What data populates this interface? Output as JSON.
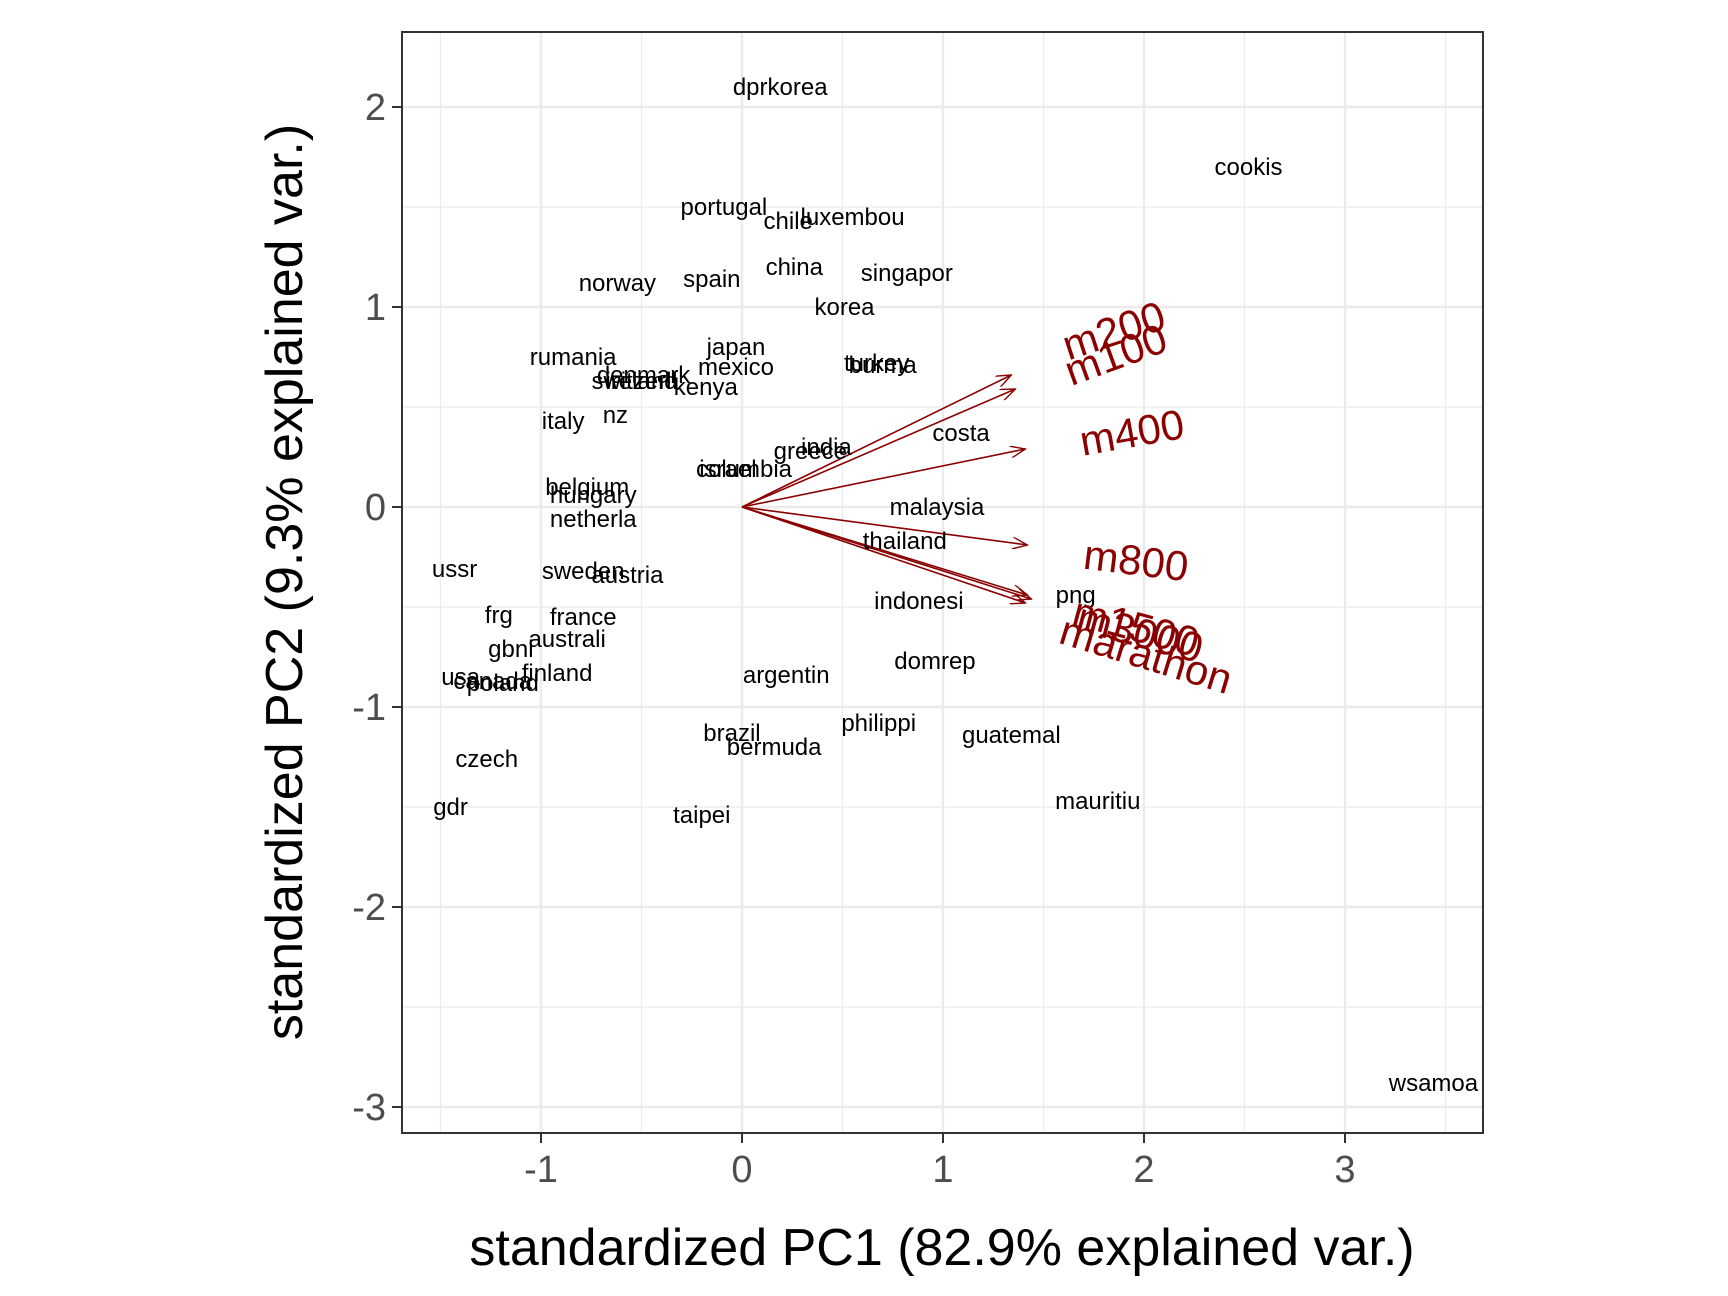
{
  "chart_data": {
    "type": "scatter",
    "xlabel": "standardized PC1 (82.9% explained var.)",
    "ylabel": "standardized PC2 (9.3% explained var.)",
    "xlim": [
      -1.69,
      3.69
    ],
    "ylim": [
      -3.12,
      2.38
    ],
    "xticks": [
      -1,
      0,
      1,
      2,
      3
    ],
    "yticks": [
      -3,
      -2,
      -1,
      0,
      1,
      2
    ],
    "grid": true,
    "colors": {
      "arrow": "#8b0000",
      "grid": "#ebebeb",
      "panel_border": "#333333",
      "points": "#000000"
    },
    "points": [
      {
        "label": "dprkorea",
        "x": 0.19,
        "y": 2.1
      },
      {
        "label": "cookis",
        "x": 2.52,
        "y": 1.7
      },
      {
        "label": "portugal",
        "x": -0.09,
        "y": 1.5
      },
      {
        "label": "luxembou",
        "x": 0.55,
        "y": 1.45
      },
      {
        "label": "chile",
        "x": 0.23,
        "y": 1.43
      },
      {
        "label": "china",
        "x": 0.26,
        "y": 1.2
      },
      {
        "label": "singapor",
        "x": 0.82,
        "y": 1.17
      },
      {
        "label": "spain",
        "x": -0.15,
        "y": 1.14
      },
      {
        "label": "norway",
        "x": -0.62,
        "y": 1.12
      },
      {
        "label": "korea",
        "x": 0.51,
        "y": 1.0
      },
      {
        "label": "japan",
        "x": -0.03,
        "y": 0.8
      },
      {
        "label": "rumania",
        "x": -0.84,
        "y": 0.75
      },
      {
        "label": "turkey",
        "x": 0.67,
        "y": 0.72
      },
      {
        "label": "burma",
        "x": 0.7,
        "y": 0.71
      },
      {
        "label": "mexico",
        "x": -0.03,
        "y": 0.7
      },
      {
        "label": "denmark",
        "x": -0.49,
        "y": 0.66
      },
      {
        "label": "switzerl",
        "x": -0.55,
        "y": 0.63
      },
      {
        "label": "ireland",
        "x": -0.5,
        "y": 0.63
      },
      {
        "label": "kenya",
        "x": -0.18,
        "y": 0.6
      },
      {
        "label": "nz",
        "x": -0.63,
        "y": 0.46
      },
      {
        "label": "italy",
        "x": -0.89,
        "y": 0.43
      },
      {
        "label": "costa",
        "x": 1.09,
        "y": 0.37
      },
      {
        "label": "india",
        "x": 0.42,
        "y": 0.3
      },
      {
        "label": "greece",
        "x": 0.34,
        "y": 0.28
      },
      {
        "label": "israel",
        "x": -0.07,
        "y": 0.19
      },
      {
        "label": "columbia",
        "x": 0.01,
        "y": 0.19
      },
      {
        "label": "belgium",
        "x": -0.77,
        "y": 0.1
      },
      {
        "label": "hungary",
        "x": -0.74,
        "y": 0.06
      },
      {
        "label": "malaysia",
        "x": 0.97,
        "y": 0.0
      },
      {
        "label": "netherla",
        "x": -0.74,
        "y": -0.06
      },
      {
        "label": "thailand",
        "x": 0.81,
        "y": -0.17
      },
      {
        "label": "ussr",
        "x": -1.43,
        "y": -0.31
      },
      {
        "label": "sweden",
        "x": -0.79,
        "y": -0.32
      },
      {
        "label": "austria",
        "x": -0.57,
        "y": -0.34
      },
      {
        "label": "png",
        "x": 1.66,
        "y": -0.44
      },
      {
        "label": "indonesi",
        "x": 0.88,
        "y": -0.47
      },
      {
        "label": "frg",
        "x": -1.21,
        "y": -0.54
      },
      {
        "label": "france",
        "x": -0.79,
        "y": -0.55
      },
      {
        "label": "australi",
        "x": -0.87,
        "y": -0.66
      },
      {
        "label": "gbni",
        "x": -1.15,
        "y": -0.71
      },
      {
        "label": "domrep",
        "x": 0.96,
        "y": -0.77
      },
      {
        "label": "usa",
        "x": -1.4,
        "y": -0.85
      },
      {
        "label": "finland",
        "x": -0.92,
        "y": -0.83
      },
      {
        "label": "canada",
        "x": -1.24,
        "y": -0.87
      },
      {
        "label": "poland",
        "x": -1.19,
        "y": -0.88
      },
      {
        "label": "argentin",
        "x": 0.22,
        "y": -0.84
      },
      {
        "label": "philippi",
        "x": 0.68,
        "y": -1.08
      },
      {
        "label": "brazil",
        "x": -0.05,
        "y": -1.13
      },
      {
        "label": "guatemal",
        "x": 1.34,
        "y": -1.14
      },
      {
        "label": "bermuda",
        "x": 0.16,
        "y": -1.2
      },
      {
        "label": "czech",
        "x": -1.27,
        "y": -1.26
      },
      {
        "label": "mauritiu",
        "x": 1.77,
        "y": -1.47
      },
      {
        "label": "gdr",
        "x": -1.45,
        "y": -1.5
      },
      {
        "label": "taipei",
        "x": -0.2,
        "y": -1.54
      },
      {
        "label": "wsamoa",
        "x": 3.44,
        "y": -2.88
      }
    ],
    "loadings": [
      {
        "name": "m100",
        "x": 1.36,
        "y": 0.59,
        "label_x": 1.86,
        "label_y": 0.76,
        "rotation": -20
      },
      {
        "name": "m200",
        "x": 1.34,
        "y": 0.66,
        "label_x": 1.85,
        "label_y": 0.88,
        "rotation": -18
      },
      {
        "name": "m400",
        "x": 1.41,
        "y": 0.29,
        "label_x": 1.94,
        "label_y": 0.37,
        "rotation": -10
      },
      {
        "name": "m800",
        "x": 1.42,
        "y": -0.19,
        "label_x": 1.96,
        "label_y": -0.27,
        "rotation": 7
      },
      {
        "name": "m1500",
        "x": 1.42,
        "y": -0.44,
        "label_x": 1.96,
        "label_y": -0.6,
        "rotation": 15
      },
      {
        "name": "m3000",
        "x": 1.44,
        "y": -0.46,
        "label_x": 1.98,
        "label_y": -0.63,
        "rotation": 15
      },
      {
        "name": "marathon",
        "x": 1.41,
        "y": -0.48,
        "label_x": 2.01,
        "label_y": -0.74,
        "rotation": 17
      }
    ]
  }
}
